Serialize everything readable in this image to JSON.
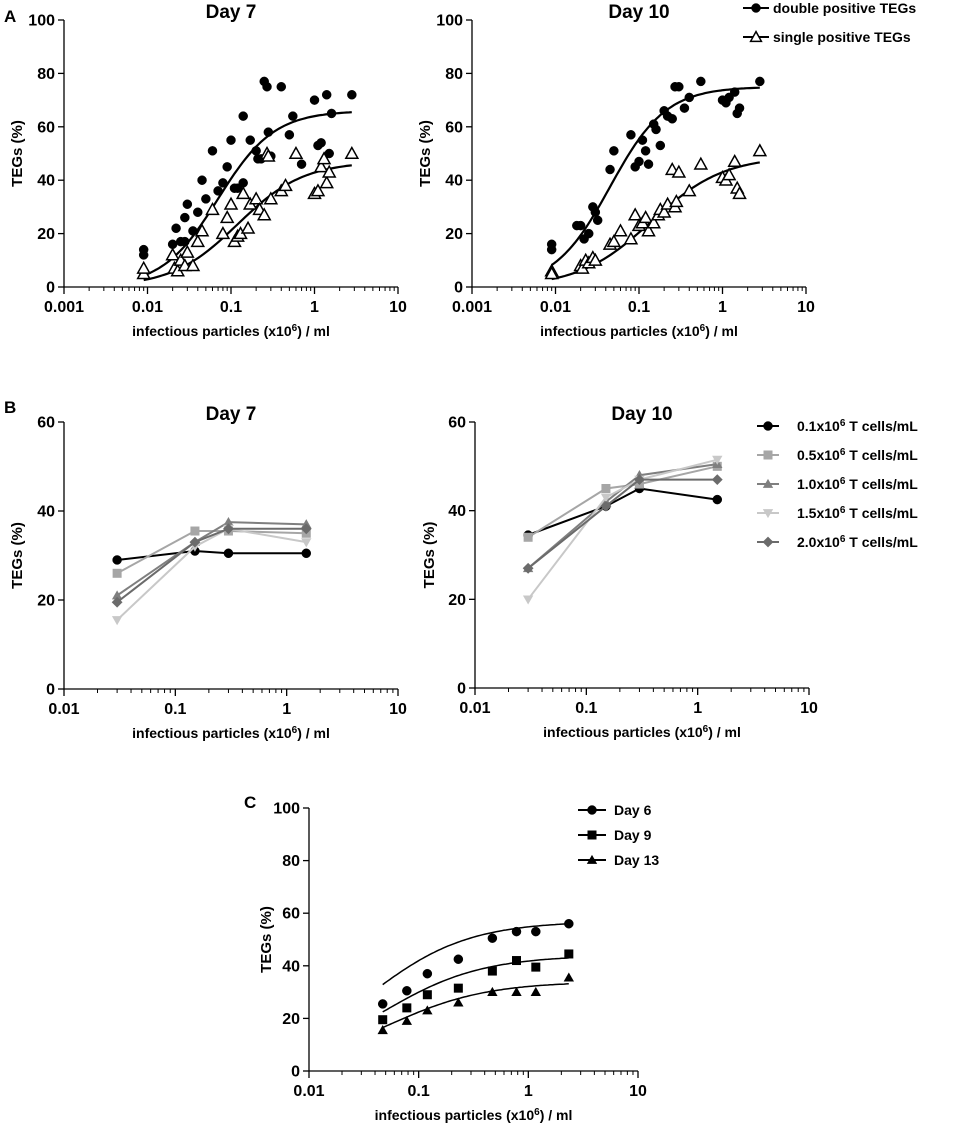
{
  "panel_labels": [
    "A",
    "B",
    "C"
  ],
  "chart_data": [
    {
      "id": "A1",
      "type": "scatter",
      "panel": "A",
      "title": "Day 7",
      "xlabel": "infectious particles (x10^6) / ml",
      "ylabel": "TEGs (%)",
      "xscale": "log",
      "xlim": [
        0.001,
        10
      ],
      "ylim": [
        0,
        100
      ],
      "xticks": [
        0.001,
        0.01,
        0.1,
        1,
        10
      ],
      "xtick_labels": [
        "0.001",
        "0.01",
        "0.1",
        "1",
        "10"
      ],
      "yticks": [
        0,
        20,
        40,
        60,
        80,
        100
      ],
      "legend": "none",
      "series": [
        {
          "name": "double positive TEGs",
          "marker": "filled-circle",
          "points": [
            [
              0.009,
              14
            ],
            [
              0.009,
              12
            ],
            [
              0.02,
              16
            ],
            [
              0.022,
              22
            ],
            [
              0.025,
              17
            ],
            [
              0.028,
              26
            ],
            [
              0.028,
              17
            ],
            [
              0.03,
              31
            ],
            [
              0.035,
              21
            ],
            [
              0.04,
              28
            ],
            [
              0.045,
              40
            ],
            [
              0.05,
              33
            ],
            [
              0.06,
              51
            ],
            [
              0.07,
              36
            ],
            [
              0.08,
              39
            ],
            [
              0.09,
              45
            ],
            [
              0.1,
              55
            ],
            [
              0.11,
              37
            ],
            [
              0.12,
              37
            ],
            [
              0.14,
              64
            ],
            [
              0.14,
              39
            ],
            [
              0.17,
              55
            ],
            [
              0.2,
              51
            ],
            [
              0.21,
              48
            ],
            [
              0.23,
              48
            ],
            [
              0.25,
              77
            ],
            [
              0.27,
              75
            ],
            [
              0.28,
              58
            ],
            [
              0.3,
              49
            ],
            [
              0.4,
              75
            ],
            [
              0.5,
              57
            ],
            [
              0.55,
              64
            ],
            [
              0.7,
              46
            ],
            [
              1.0,
              70
            ],
            [
              1.1,
              53
            ],
            [
              1.2,
              54
            ],
            [
              1.4,
              72
            ],
            [
              1.5,
              50
            ],
            [
              1.6,
              65
            ],
            [
              2.8,
              72
            ]
          ],
          "fit": {
            "bottom": 0,
            "top": 66,
            "ec50": 0.07,
            "hill": 1.3
          }
        },
        {
          "name": "single positive TEGs",
          "marker": "open-triangle",
          "points": [
            [
              0.009,
              5
            ],
            [
              0.009,
              7
            ],
            [
              0.02,
              12
            ],
            [
              0.021,
              7
            ],
            [
              0.023,
              6
            ],
            [
              0.025,
              10
            ],
            [
              0.028,
              8
            ],
            [
              0.03,
              13
            ],
            [
              0.035,
              8
            ],
            [
              0.04,
              17
            ],
            [
              0.045,
              21
            ],
            [
              0.06,
              29
            ],
            [
              0.08,
              20
            ],
            [
              0.09,
              26
            ],
            [
              0.1,
              31
            ],
            [
              0.11,
              17
            ],
            [
              0.12,
              19
            ],
            [
              0.13,
              20
            ],
            [
              0.14,
              35
            ],
            [
              0.16,
              22
            ],
            [
              0.17,
              31
            ],
            [
              0.2,
              33
            ],
            [
              0.22,
              29
            ],
            [
              0.25,
              27
            ],
            [
              0.27,
              50
            ],
            [
              0.28,
              49
            ],
            [
              0.3,
              33
            ],
            [
              0.4,
              36
            ],
            [
              0.45,
              38
            ],
            [
              0.6,
              50
            ],
            [
              1.0,
              35
            ],
            [
              1.1,
              36
            ],
            [
              1.2,
              45
            ],
            [
              1.3,
              48
            ],
            [
              1.4,
              39
            ],
            [
              1.5,
              43
            ],
            [
              2.8,
              50
            ]
          ],
          "fit": {
            "bottom": 0,
            "top": 47,
            "ec50": 0.12,
            "hill": 1.1
          }
        }
      ]
    },
    {
      "id": "A2",
      "type": "scatter",
      "panel": "A",
      "title": "Day 10",
      "xlabel": "infectious particles (x10^6) / ml",
      "ylabel": "TEGs (%)",
      "xscale": "log",
      "xlim": [
        0.001,
        10
      ],
      "ylim": [
        0,
        100
      ],
      "xticks": [
        0.001,
        0.01,
        0.1,
        1,
        10
      ],
      "xtick_labels": [
        "0.001",
        "0.01",
        "0.1",
        "1",
        "10"
      ],
      "yticks": [
        0,
        20,
        40,
        60,
        80,
        100
      ],
      "legend": "top-right",
      "series": [
        {
          "name": "double positive TEGs",
          "marker": "filled-circle",
          "points": [
            [
              0.009,
              16
            ],
            [
              0.009,
              14
            ],
            [
              0.018,
              23
            ],
            [
              0.02,
              23
            ],
            [
              0.022,
              18
            ],
            [
              0.025,
              20
            ],
            [
              0.028,
              30
            ],
            [
              0.03,
              28
            ],
            [
              0.032,
              25
            ],
            [
              0.045,
              44
            ],
            [
              0.05,
              51
            ],
            [
              0.08,
              57
            ],
            [
              0.09,
              45
            ],
            [
              0.1,
              47
            ],
            [
              0.11,
              55
            ],
            [
              0.12,
              51
            ],
            [
              0.13,
              46
            ],
            [
              0.15,
              61
            ],
            [
              0.16,
              59
            ],
            [
              0.18,
              53
            ],
            [
              0.2,
              66
            ],
            [
              0.22,
              64
            ],
            [
              0.25,
              63
            ],
            [
              0.27,
              75
            ],
            [
              0.3,
              75
            ],
            [
              0.35,
              67
            ],
            [
              0.4,
              71
            ],
            [
              0.55,
              77
            ],
            [
              1.0,
              70
            ],
            [
              1.1,
              69
            ],
            [
              1.2,
              71
            ],
            [
              1.4,
              73
            ],
            [
              1.5,
              65
            ],
            [
              1.6,
              67
            ],
            [
              2.8,
              77
            ]
          ],
          "fit": {
            "bottom": 0,
            "top": 75,
            "ec50": 0.045,
            "hill": 1.3
          }
        },
        {
          "name": "single positive TEGs",
          "marker": "open-triangle",
          "points": [
            [
              0.009,
              6
            ],
            [
              0.009,
              5
            ],
            [
              0.02,
              8
            ],
            [
              0.021,
              7
            ],
            [
              0.023,
              10
            ],
            [
              0.025,
              9
            ],
            [
              0.028,
              11
            ],
            [
              0.03,
              10
            ],
            [
              0.045,
              16
            ],
            [
              0.05,
              17
            ],
            [
              0.06,
              21
            ],
            [
              0.08,
              18
            ],
            [
              0.09,
              27
            ],
            [
              0.1,
              23
            ],
            [
              0.11,
              24
            ],
            [
              0.12,
              26
            ],
            [
              0.13,
              21
            ],
            [
              0.15,
              24
            ],
            [
              0.17,
              27
            ],
            [
              0.18,
              29
            ],
            [
              0.2,
              28
            ],
            [
              0.22,
              31
            ],
            [
              0.25,
              44
            ],
            [
              0.27,
              30
            ],
            [
              0.28,
              32
            ],
            [
              0.3,
              43
            ],
            [
              0.4,
              36
            ],
            [
              0.55,
              46
            ],
            [
              1.0,
              41
            ],
            [
              1.1,
              40
            ],
            [
              1.2,
              42
            ],
            [
              1.4,
              47
            ],
            [
              1.5,
              37
            ],
            [
              1.6,
              35
            ],
            [
              2.8,
              51
            ]
          ],
          "fit": {
            "bottom": 0,
            "top": 49,
            "ec50": 0.14,
            "hill": 1.0
          }
        }
      ]
    },
    {
      "id": "B1",
      "type": "line",
      "panel": "B",
      "title": "Day 7",
      "xlabel": "infectious particles (x10^6) / ml",
      "ylabel": "TEGs (%)",
      "xscale": "log",
      "xlim": [
        0.01,
        10
      ],
      "ylim": [
        0,
        60
      ],
      "xticks": [
        0.01,
        0.1,
        1,
        10
      ],
      "xtick_labels": [
        "0.01",
        "0.1",
        "1",
        "10"
      ],
      "yticks": [
        0,
        20,
        40,
        60
      ],
      "legend": "none",
      "x": [
        0.03,
        0.15,
        0.3,
        1.5
      ],
      "series": [
        {
          "name": "0.1x10^6 T cells/mL",
          "color": "#000000",
          "marker": "circle",
          "values": [
            29,
            31,
            30.5,
            30.5
          ]
        },
        {
          "name": "0.5x10^6 T cells/mL",
          "color": "#a6a6a6",
          "marker": "square",
          "values": [
            26,
            35.5,
            35.5,
            35
          ]
        },
        {
          "name": "1.0x10^6 T cells/mL",
          "color": "#7f7f7f",
          "marker": "triangle-up",
          "values": [
            21,
            33,
            37.5,
            37
          ]
        },
        {
          "name": "1.5x10^6 T cells/mL",
          "color": "#c8c8c8",
          "marker": "triangle-down",
          "values": [
            15.5,
            32,
            36,
            33
          ]
        },
        {
          "name": "2.0x10^6 T cells/mL",
          "color": "#6b6b6b",
          "marker": "diamond",
          "values": [
            19.5,
            33,
            36,
            36
          ]
        }
      ]
    },
    {
      "id": "B2",
      "type": "line",
      "panel": "B",
      "title": "Day 10",
      "xlabel": "infectious particles (x10^6) / ml",
      "ylabel": "TEGs (%)",
      "xscale": "log",
      "xlim": [
        0.01,
        10
      ],
      "ylim": [
        0,
        60
      ],
      "xticks": [
        0.01,
        0.1,
        1,
        10
      ],
      "xtick_labels": [
        "0.01",
        "0.1",
        "1",
        "10"
      ],
      "yticks": [
        0,
        20,
        40,
        60
      ],
      "legend": "right",
      "x": [
        0.03,
        0.15,
        0.3,
        1.5
      ],
      "series": [
        {
          "name": "0.1x10^6 T cells/mL",
          "color": "#000000",
          "marker": "circle",
          "values": [
            34.5,
            41,
            45,
            42.5
          ]
        },
        {
          "name": "0.5x10^6 T cells/mL",
          "color": "#a6a6a6",
          "marker": "square",
          "values": [
            34,
            45,
            46,
            50
          ]
        },
        {
          "name": "1.0x10^6 T cells/mL",
          "color": "#7f7f7f",
          "marker": "triangle-up",
          "values": [
            27,
            42,
            48,
            50.5
          ]
        },
        {
          "name": "1.5x10^6 T cells/mL",
          "color": "#c8c8c8",
          "marker": "triangle-down",
          "values": [
            20,
            43,
            47,
            51.5
          ]
        },
        {
          "name": "2.0x10^6 T cells/mL",
          "color": "#6b6b6b",
          "marker": "diamond",
          "values": [
            27,
            41,
            47,
            47
          ]
        }
      ]
    },
    {
      "id": "C",
      "type": "scatter",
      "panel": "C",
      "title": "",
      "xlabel": "infectious particles (x10^6) / ml",
      "ylabel": "TEGs (%)",
      "xscale": "log",
      "xlim": [
        0.01,
        10
      ],
      "ylim": [
        0,
        100
      ],
      "xticks": [
        0.01,
        0.1,
        1,
        10
      ],
      "xtick_labels": [
        "0.01",
        "0.1",
        "1",
        "10"
      ],
      "yticks": [
        0,
        20,
        40,
        60,
        80,
        100
      ],
      "legend": "top-right",
      "x": [
        0.047,
        0.078,
        0.12,
        0.23,
        0.47,
        0.78,
        1.17,
        2.34
      ],
      "series": [
        {
          "name": "Day 6",
          "marker": "circle",
          "values": [
            25.5,
            30.5,
            37,
            42.5,
            50.5,
            53,
            53,
            56
          ],
          "fit": {
            "bottom": 0,
            "top": 57,
            "ec50": 0.034,
            "hill": 0.95
          }
        },
        {
          "name": "Day 9",
          "marker": "square",
          "values": [
            19.5,
            24,
            29,
            31.5,
            38,
            42,
            39.5,
            44.5
          ],
          "fit": {
            "bottom": 0,
            "top": 44,
            "ec50": 0.045,
            "hill": 0.95
          }
        },
        {
          "name": "Day 13",
          "marker": "triangle-up",
          "values": [
            15.5,
            19,
            23,
            26,
            30,
            30,
            30,
            35.5
          ],
          "fit": {
            "bottom": 0,
            "top": 34,
            "ec50": 0.05,
            "hill": 0.95
          }
        }
      ]
    }
  ]
}
